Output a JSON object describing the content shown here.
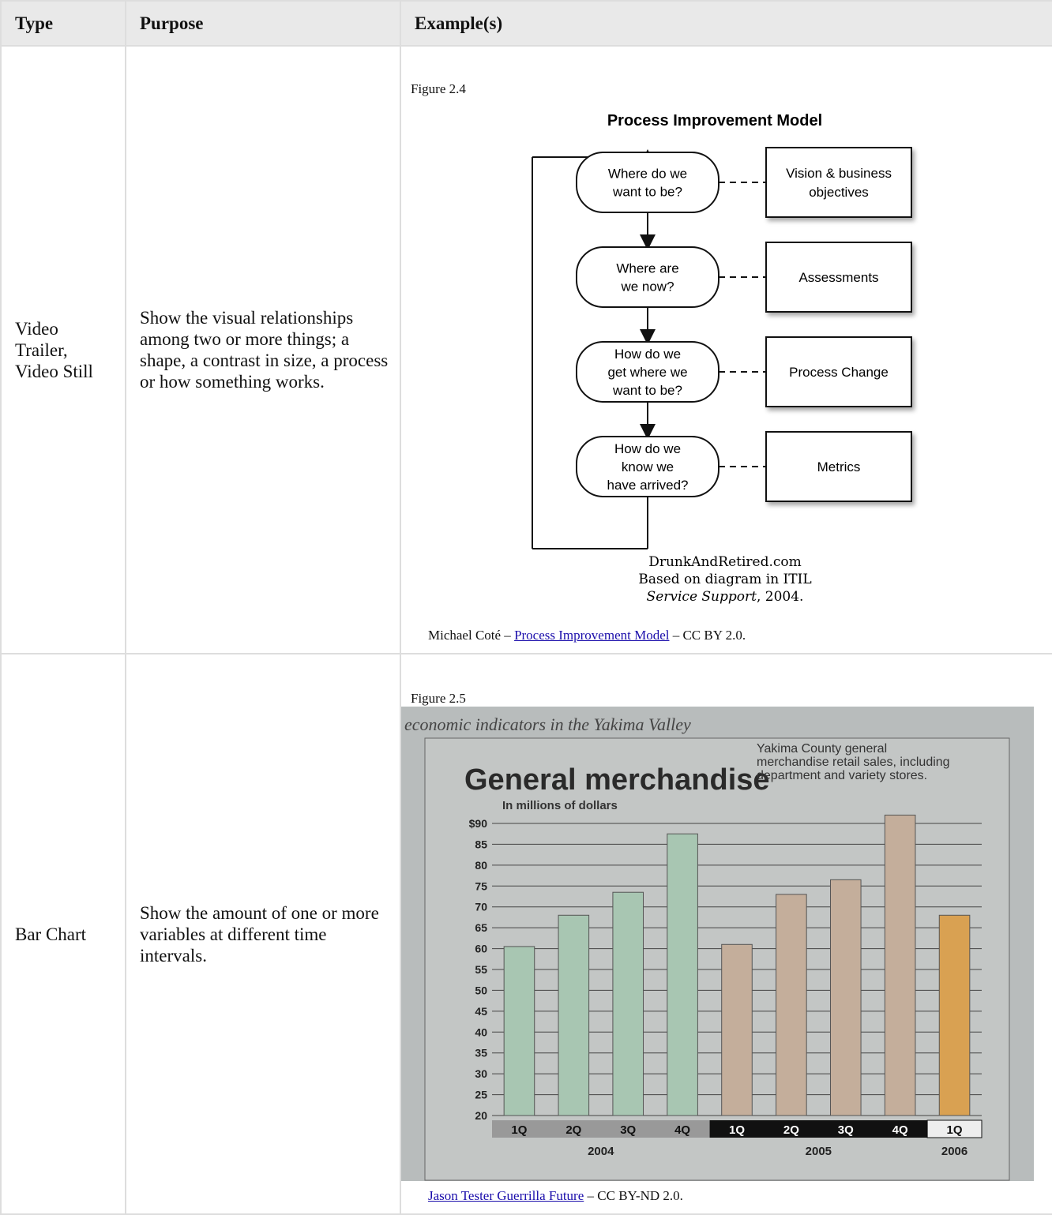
{
  "table": {
    "headers": [
      "Type",
      "Purpose",
      "Example(s)"
    ],
    "rows": [
      {
        "type": "Video Trailer, Video Still",
        "purpose": "Show the visual relationships among two or more things; a shape, a contrast in size, a process or how something works.",
        "figure": {
          "label": "Figure 2.4",
          "diagram": {
            "title": "Process Improvement Model",
            "steps": [
              {
                "question": [
                  "Where do we",
                  "want to be?"
                ],
                "result": [
                  "Vision & business",
                  "objectives"
                ]
              },
              {
                "question": [
                  "Where are",
                  "we now?"
                ],
                "result": [
                  "Assessments"
                ]
              },
              {
                "question": [
                  "How do we",
                  "get where we",
                  "want to be?"
                ],
                "result": [
                  "Process Change"
                ]
              },
              {
                "question": [
                  "How do we",
                  "know we",
                  "have arrived?"
                ],
                "result": [
                  "Metrics"
                ]
              }
            ],
            "source": "DrunkAndRetired.com",
            "basis": "Based on diagram in ITIL",
            "book": "Service Support",
            "year_text": ", 2004."
          }
        },
        "credit": {
          "author": "Michael Coté –",
          "link": "Process Improvement Model",
          "license": "– CC BY 2.0."
        }
      },
      {
        "type": "Bar Chart",
        "purpose": "Show the amount of one or more variables at different time intervals.",
        "figure": {
          "label": "Figure 2.5",
          "chart": {
            "type": "bar",
            "header": "economic indicators in the Yakima Valley",
            "title": "General merchandise",
            "description": [
              "Yakima County general",
              "merchandise retail sales, including",
              "department and variety stores."
            ],
            "unit": "In millions of dollars",
            "categories": [
              "1Q",
              "2Q",
              "3Q",
              "4Q",
              "1Q",
              "2Q",
              "3Q",
              "4Q",
              "1Q"
            ],
            "years": [
              "2004",
              "2005",
              "2006"
            ],
            "values": [
              60.5,
              68,
              73.5,
              87.5,
              61,
              73,
              76.5,
              92,
              68
            ],
            "colors": [
              "#a8c6b2",
              "#a8c6b2",
              "#a8c6b2",
              "#a8c6b2",
              "#c4ae9b",
              "#c4ae9b",
              "#c4ae9b",
              "#c4ae9b",
              "#d9a152"
            ],
            "ylim": [
              20,
              90
            ],
            "yticks": [
              20,
              25,
              30,
              35,
              40,
              45,
              50,
              55,
              60,
              65,
              70,
              75,
              80,
              85,
              {
                "value": 90,
                "label": "$90"
              }
            ],
            "grid": true
          }
        },
        "credit": {
          "link": "Jason Tester Guerrilla Future",
          "license": "– CC BY-ND 2.0."
        }
      }
    ]
  }
}
